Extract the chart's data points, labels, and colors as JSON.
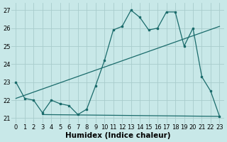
{
  "xlabel": "Humidex (Indice chaleur)",
  "bg_color": "#c8e8e8",
  "grid_color": "#a8cccc",
  "line_color": "#1a6b6b",
  "xlim": [
    -0.5,
    23.5
  ],
  "ylim": [
    20.7,
    27.4
  ],
  "yticks": [
    21,
    22,
    23,
    24,
    25,
    26,
    27
  ],
  "xticks": [
    0,
    1,
    2,
    3,
    4,
    5,
    6,
    7,
    8,
    9,
    10,
    11,
    12,
    13,
    14,
    15,
    16,
    17,
    18,
    19,
    20,
    21,
    22,
    23
  ],
  "line1_x": [
    0,
    1,
    2,
    3,
    4,
    5,
    6,
    7,
    8,
    9,
    10,
    11,
    12,
    13,
    14,
    15,
    16,
    17,
    18,
    19,
    20,
    21,
    22,
    23
  ],
  "line1_y": [
    23.0,
    22.1,
    22.0,
    21.3,
    22.0,
    21.8,
    21.7,
    21.2,
    21.5,
    22.8,
    24.2,
    25.9,
    26.1,
    27.0,
    26.6,
    25.9,
    26.0,
    26.9,
    26.9,
    25.0,
    26.0,
    23.3,
    22.5,
    21.1
  ],
  "line2_x": [
    3,
    23
  ],
  "line2_y": [
    21.2,
    21.1
  ],
  "line3_x": [
    0,
    23
  ],
  "line3_y": [
    22.1,
    26.1
  ],
  "tick_fontsize": 6,
  "label_fontsize": 7.5
}
